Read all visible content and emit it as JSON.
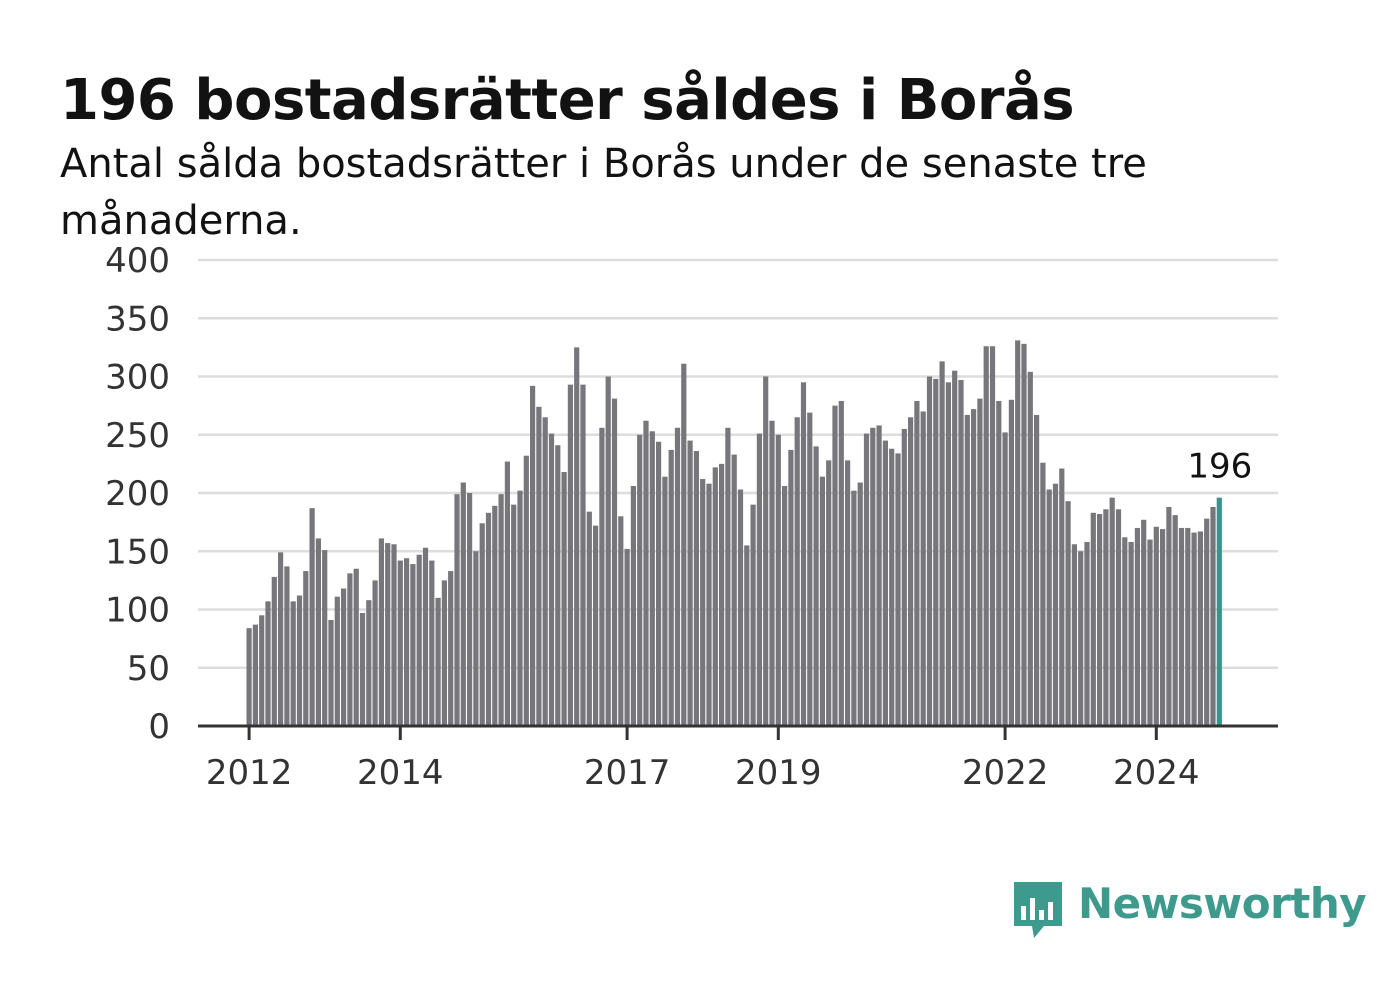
{
  "title": "196 bostadsrätter såldes i Borås",
  "subtitle": "Antal sålda bostadsrätter i Borås under de senaste tre månaderna.",
  "brand": "Newsworthy",
  "colors": {
    "bar": "#76767b",
    "highlight": "#2c9a8e",
    "grid": "#dddddd",
    "axis": "#333333",
    "brand": "#3f9a8e"
  },
  "chart_data": {
    "type": "bar",
    "ylim": [
      0,
      400
    ],
    "yticks": [
      0,
      50,
      100,
      150,
      200,
      250,
      300,
      350,
      400
    ],
    "xticks": [
      "2012",
      "2014",
      "2017",
      "2019",
      "2022",
      "2024"
    ],
    "grid": true,
    "highlight_label": "196",
    "start": "2012-01",
    "values": [
      84,
      87,
      95,
      107,
      128,
      149,
      137,
      107,
      112,
      133,
      187,
      161,
      151,
      91,
      111,
      118,
      131,
      135,
      97,
      108,
      125,
      161,
      157,
      156,
      142,
      144,
      139,
      147,
      153,
      142,
      110,
      125,
      133,
      199,
      209,
      200,
      150,
      174,
      183,
      189,
      199,
      227,
      190,
      202,
      232,
      292,
      274,
      265,
      251,
      241,
      218,
      293,
      325,
      293,
      184,
      172,
      256,
      300,
      281,
      180,
      152,
      206,
      250,
      262,
      253,
      244,
      214,
      237,
      256,
      311,
      245,
      236,
      212,
      208,
      222,
      225,
      256,
      233,
      203,
      155,
      190,
      251,
      300,
      262,
      250,
      206,
      237,
      265,
      295,
      269,
      240,
      214,
      228,
      275,
      279,
      228,
      202,
      209,
      251,
      256,
      258,
      245,
      238,
      234,
      255,
      265,
      279,
      270,
      300,
      298,
      313,
      295,
      305,
      297,
      267,
      272,
      281,
      326,
      326,
      279,
      252,
      280,
      331,
      328,
      304,
      267,
      226,
      203,
      208,
      221,
      193,
      156,
      150,
      158,
      183,
      182,
      186,
      196,
      186,
      162,
      158,
      170,
      177,
      160,
      171,
      169,
      188,
      181,
      170,
      170,
      166,
      167,
      178,
      188,
      196
    ]
  }
}
